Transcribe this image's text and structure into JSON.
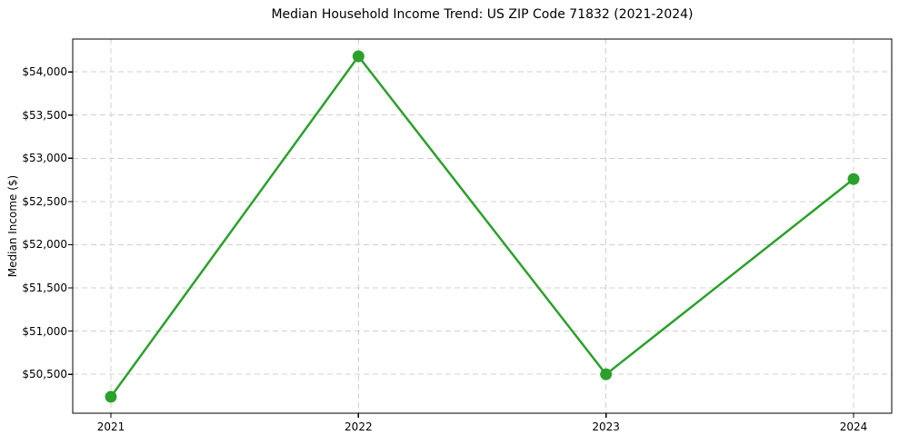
{
  "chart_data": {
    "type": "line",
    "title": "Median Household Income Trend: US ZIP Code 71832 (2021-2024)",
    "xlabel": "",
    "ylabel": "Median Income ($)",
    "categories": [
      "2021",
      "2022",
      "2023",
      "2024"
    ],
    "values": [
      50240,
      54180,
      50500,
      52760
    ],
    "ylim": [
      50050,
      54380
    ],
    "yticks": [
      50500,
      51000,
      51500,
      52000,
      52500,
      53000,
      53500,
      54000
    ],
    "ytick_labels": [
      "$50,500",
      "$51,000",
      "$51,500",
      "$52,000",
      "$52,500",
      "$53,000",
      "$53,500",
      "$54,000"
    ],
    "grid": true,
    "grid_style": "dashed",
    "legend_position": "none",
    "colors": {
      "line": "#2ca02c",
      "marker": "#2ca02c",
      "grid": "#d0d0d0",
      "spine": "#000000",
      "text": "#000000",
      "background": "#ffffff"
    }
  }
}
